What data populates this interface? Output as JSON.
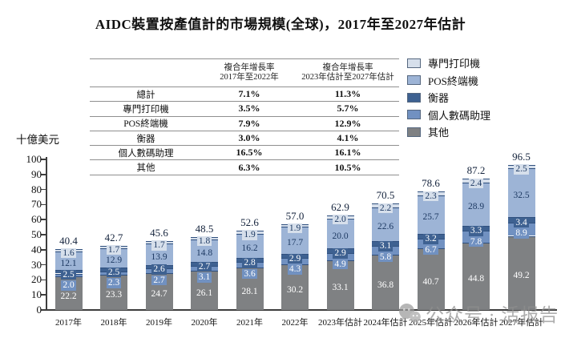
{
  "title": "AIDC裝置按產值計的市場規模(全球)，2017年至2027年估計",
  "cagr_table": {
    "headers": {
      "col2_line1": "複合年增長率",
      "col2_line2": "2017年至2022年",
      "col3_line1": "複合年增長率",
      "col3_line2": "2023年估計至2027年估計"
    },
    "rows": [
      {
        "label": "總計",
        "period1": "7.1%",
        "period2": "11.3%"
      },
      {
        "label": "專門打印機",
        "period1": "3.5%",
        "period2": "5.7%"
      },
      {
        "label": "POS終端機",
        "period1": "7.9%",
        "period2": "12.9%"
      },
      {
        "label": "衡器",
        "period1": "3.0%",
        "period2": "4.1%"
      },
      {
        "label": "個人數碼助理",
        "period1": "16.5%",
        "period2": "16.1%"
      },
      {
        "label": "其他",
        "period1": "6.3%",
        "period2": "10.5%"
      }
    ]
  },
  "legend": {
    "items": [
      {
        "label": "專門打印機",
        "color": "#d6dfeb"
      },
      {
        "label": "POS終端機",
        "color": "#9db4d6"
      },
      {
        "label": "衡器",
        "color": "#3e6191"
      },
      {
        "label": "個人數碼助理",
        "color": "#7191c1"
      },
      {
        "label": "其他",
        "color": "#7f8183"
      }
    ]
  },
  "chart_data": {
    "type": "bar",
    "stacked": true,
    "title": "AIDC裝置按產值計的市場規模(全球)，2017年至2027年估計",
    "ylabel": "十億美元",
    "xlabel": "",
    "ylim": [
      0,
      100
    ],
    "ytick_step": 10,
    "grid": false,
    "legend_position": "top-right",
    "categories": [
      "2017年",
      "2018年",
      "2019年",
      "2020年",
      "2021年",
      "2022年",
      "2023年估計",
      "2024年估計",
      "2025年估計",
      "2026年估計",
      "2027年估計"
    ],
    "totals": [
      40.4,
      42.7,
      45.6,
      48.5,
      52.6,
      57.0,
      62.9,
      70.5,
      78.6,
      87.2,
      96.5
    ],
    "series": [
      {
        "name": "其他",
        "color": "#7f8183",
        "label_color": "#ffffff",
        "values": [
          22.2,
          23.3,
          24.7,
          26.1,
          28.1,
          30.2,
          33.1,
          36.8,
          40.7,
          44.8,
          49.2
        ]
      },
      {
        "name": "個人數碼助理",
        "color": "#7191c1",
        "label_color": "#ffffff",
        "values": [
          2.0,
          2.3,
          2.7,
          3.1,
          3.6,
          4.3,
          4.9,
          5.8,
          6.7,
          7.8,
          8.9
        ]
      },
      {
        "name": "衡器",
        "color": "#3e6191",
        "label_color": "#ffffff",
        "values": [
          2.5,
          2.5,
          2.6,
          2.7,
          2.8,
          2.9,
          2.9,
          3.1,
          3.2,
          3.3,
          3.4
        ]
      },
      {
        "name": "POS終端機",
        "color": "#9db4d6",
        "label_color": "#1e3a63",
        "values": [
          12.1,
          12.9,
          13.9,
          14.8,
          16.2,
          17.7,
          20.0,
          22.6,
          25.7,
          28.9,
          32.5
        ]
      },
      {
        "name": "專門打印機",
        "color": "#d6dfeb",
        "label_color": "#1e3a63",
        "values": [
          1.6,
          1.7,
          1.7,
          1.8,
          1.9,
          1.9,
          2.0,
          2.2,
          2.3,
          2.4,
          2.5
        ]
      }
    ]
  },
  "watermark": {
    "text": "公众号 · 活报告",
    "icon": "wechat-icon"
  }
}
